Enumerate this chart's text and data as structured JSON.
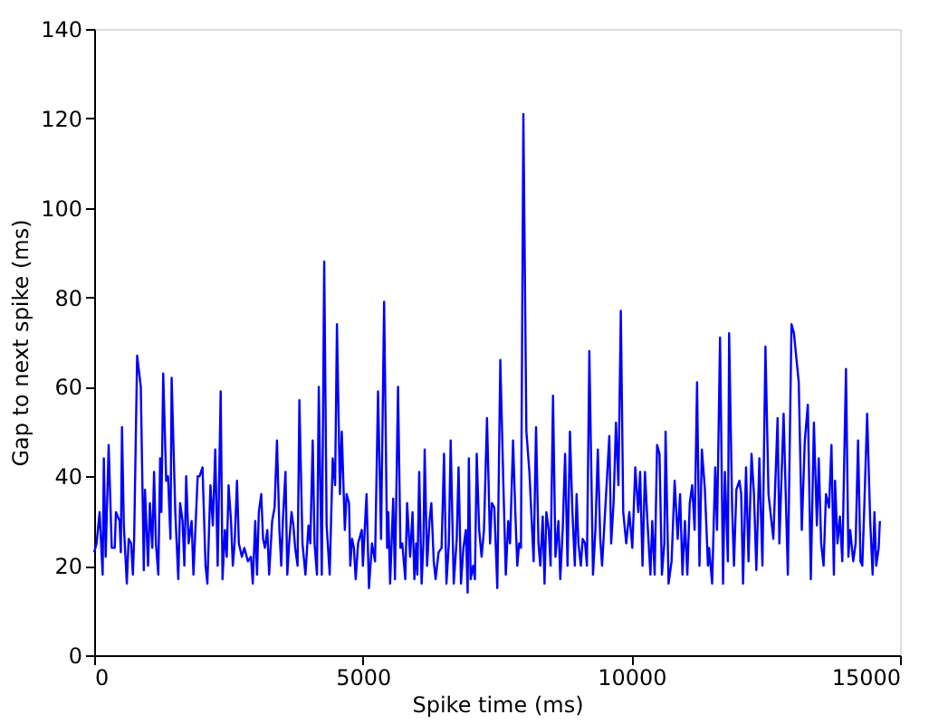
{
  "chart_data": {
    "type": "line",
    "xlabel": "Spike time (ms)",
    "ylabel": "Gap to next spike (ms)",
    "xlim": [
      0,
      15000
    ],
    "xticks": [
      0,
      5000,
      10000,
      15000
    ],
    "ylim": [
      0,
      140
    ],
    "yticks": [
      0,
      20,
      40,
      60,
      80,
      100,
      120,
      140
    ],
    "grid": false,
    "marker": "none",
    "line_style": "solid",
    "series": [
      {
        "color": "#0000ff",
        "x": [
          0,
          45,
          101,
          158,
          180,
          214,
          270,
          327,
          383,
          405,
          473,
          496,
          518,
          552,
          608,
          642,
          687,
          721,
          744,
          800,
          868,
          924,
          946,
          1003,
          1037,
          1082,
          1115,
          1149,
          1194,
          1228,
          1251,
          1285,
          1341,
          1375,
          1420,
          1442,
          1510,
          1566,
          1600,
          1645,
          1679,
          1713,
          1758,
          1814,
          1848,
          1927,
          1961,
          2017,
          2073,
          2107,
          2164,
          2209,
          2254,
          2299,
          2355,
          2389,
          2434,
          2468,
          2502,
          2547,
          2581,
          2614,
          2659,
          2693,
          2750,
          2795,
          2862,
          2919,
          2952,
          2998,
          3031,
          3065,
          3110,
          3144,
          3178,
          3223,
          3257,
          3313,
          3358,
          3403,
          3448,
          3482,
          3516,
          3561,
          3595,
          3629,
          3674,
          3708,
          3741,
          3786,
          3820,
          3877,
          3933,
          3989,
          4023,
          4068,
          4102,
          4147,
          4181,
          4237,
          4282,
          4327,
          4384,
          4440,
          4485,
          4519,
          4575,
          4609,
          4666,
          4699,
          4744,
          4767,
          4801,
          4835,
          4868,
          4913,
          4981,
          5002,
          5070,
          5115,
          5171,
          5228,
          5284,
          5340,
          5397,
          5453,
          5475,
          5509,
          5566,
          5599,
          5656,
          5701,
          5735,
          5791,
          5825,
          5881,
          5926,
          5960,
          5994,
          6016,
          6050,
          6095,
          6129,
          6152,
          6197,
          6242,
          6276,
          6321,
          6355,
          6411,
          6467,
          6512,
          6557,
          6602,
          6636,
          6693,
          6749,
          6783,
          6828,
          6873,
          6918,
          6952,
          6974,
          7008,
          7053,
          7087,
          7121,
          7166,
          7211,
          7256,
          7312,
          7369,
          7403,
          7448,
          7504,
          7560,
          7617,
          7662,
          7707,
          7741,
          7797,
          7842,
          7876,
          7910,
          7944,
          7989,
          8045,
          8101,
          8180,
          8225,
          8270,
          8304,
          8349,
          8383,
          8417,
          8462,
          8496,
          8541,
          8586,
          8642,
          8676,
          8721,
          8766,
          8811,
          8856,
          8902,
          8947,
          8980,
          9014,
          9059,
          9093,
          9138,
          9172,
          9217,
          9285,
          9330,
          9375,
          9420,
          9454,
          9510,
          9589,
          9623,
          9668,
          9713,
          9758,
          9803,
          9848,
          9904,
          9961,
          10017,
          10072,
          10128,
          10162,
          10207,
          10252,
          10298,
          10354,
          10388,
          10433,
          10478,
          10523,
          10568,
          10613,
          10636,
          10692,
          10748,
          10805,
          10861,
          10906,
          10951,
          10996,
          11041,
          11086,
          11131,
          11177,
          11222,
          11267,
          11312,
          11368,
          11425,
          11447,
          11503,
          11560,
          11594,
          11650,
          11706,
          11740,
          11796,
          11819,
          11875,
          11909,
          11954,
          12011,
          12044,
          12078,
          12134,
          12180,
          12236,
          12281,
          12326,
          12382,
          12439,
          12495,
          12552,
          12642,
          12721,
          12754,
          12833,
          12912,
          12980,
          13025,
          13115,
          13171,
          13228,
          13284,
          13340,
          13397,
          13453,
          13487,
          13532,
          13577,
          13622,
          13679,
          13724,
          13769,
          13791,
          13836,
          13881,
          13926,
          13994,
          14039,
          14073,
          14129,
          14174,
          14219,
          14264,
          14298,
          14332,
          14388,
          14445,
          14490,
          14524,
          14557,
          14603,
          14625
        ],
        "values": [
          23,
          25,
          32,
          18,
          44,
          22,
          47,
          24,
          24,
          32,
          30,
          23,
          51,
          29,
          16,
          26,
          25,
          18,
          26,
          67,
          60,
          19,
          37,
          20,
          34,
          24,
          41,
          25,
          18,
          44,
          32,
          63,
          39,
          40,
          26,
          62,
          32,
          17,
          34,
          30,
          20,
          40,
          25,
          30,
          18,
          40,
          40,
          42,
          20,
          16,
          38,
          29,
          46,
          20,
          59,
          17,
          28,
          22,
          38,
          30,
          20,
          25,
          39,
          25,
          22,
          24,
          21,
          22,
          16,
          30,
          18,
          32,
          36,
          26,
          24,
          28,
          18,
          30,
          33,
          48,
          28,
          20,
          31,
          41,
          18,
          25,
          32,
          29,
          24,
          20,
          57,
          25,
          18,
          29,
          25,
          48,
          25,
          18,
          60,
          18,
          88,
          29,
          18,
          44,
          38,
          74,
          36,
          50,
          28,
          36,
          34,
          20,
          26,
          24,
          17,
          25,
          28,
          20,
          36,
          15,
          25,
          21,
          59,
          26,
          79,
          24,
          32,
          16,
          35,
          17,
          60,
          24,
          25,
          17,
          34,
          22,
          32,
          17,
          25,
          18,
          41,
          16,
          25,
          46,
          20,
          30,
          34,
          21,
          17,
          23,
          24,
          45,
          16,
          25,
          48,
          16,
          26,
          42,
          16,
          24,
          28,
          14,
          44,
          17,
          20,
          17,
          45,
          28,
          22,
          28,
          53,
          25,
          34,
          33,
          15,
          66,
          38,
          18,
          30,
          25,
          48,
          31,
          20,
          25,
          24,
          121,
          50,
          41,
          21,
          51,
          25,
          20,
          31,
          16,
          32,
          28,
          20,
          58,
          22,
          30,
          17,
          28,
          45,
          20,
          50,
          32,
          20,
          36,
          25,
          20,
          26,
          25,
          20,
          68,
          18,
          28,
          46,
          26,
          20,
          32,
          49,
          25,
          34,
          52,
          38,
          77,
          32,
          25,
          32,
          24,
          42,
          32,
          41,
          20,
          41,
          30,
          18,
          30,
          18,
          47,
          45,
          18,
          25,
          50,
          16,
          21,
          39,
          26,
          36,
          18,
          30,
          18,
          34,
          38,
          28,
          61,
          20,
          46,
          37,
          20,
          24,
          16,
          42,
          28,
          71,
          16,
          41,
          21,
          72,
          33,
          20,
          37,
          39,
          36,
          16,
          42,
          21,
          45,
          36,
          19,
          44,
          20,
          69,
          36,
          26,
          53,
          25,
          54,
          18,
          74,
          72,
          61,
          28,
          48,
          56,
          17,
          52,
          29,
          44,
          25,
          20,
          36,
          33,
          47,
          18,
          39,
          25,
          31,
          21,
          64,
          22,
          28,
          21,
          25,
          48,
          21,
          20,
          32,
          54,
          30,
          18,
          32,
          20,
          24,
          30
        ]
      }
    ]
  }
}
